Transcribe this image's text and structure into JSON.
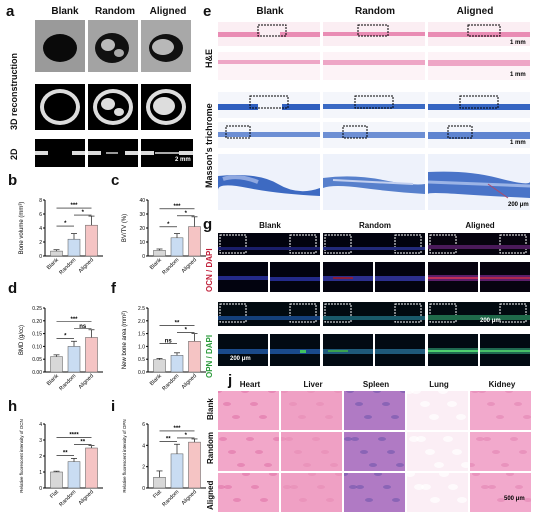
{
  "panel_letters": {
    "a": "a",
    "b": "b",
    "c": "c",
    "d": "d",
    "e": "e",
    "f": "f",
    "g": "g",
    "h": "h",
    "i": "i",
    "j": "j"
  },
  "a": {
    "columns": [
      "Blank",
      "Random",
      "Aligned"
    ],
    "rows": [
      "3D reconstruction",
      "2D"
    ],
    "scale_bar": "2 mm"
  },
  "e": {
    "columns": [
      "Blank",
      "Random",
      "Aligned"
    ],
    "rows": [
      "H&E",
      "Masson's trichrome"
    ],
    "scale_1mm": "1 mm",
    "scale_200": "200 μm"
  },
  "g": {
    "columns": [
      "Blank",
      "Random",
      "Aligned"
    ],
    "row_ocn": "OCN / DAPI",
    "row_opn": "OPN / DAPI",
    "scale_200": "200 μm"
  },
  "j": {
    "columns": [
      "Heart",
      "Liver",
      "Spleen",
      "Lung",
      "Kidney"
    ],
    "rows": [
      "Blank",
      "Random",
      "Aligned"
    ],
    "scale": "500 μm"
  },
  "colors": {
    "bar1": "#d8d8d8",
    "bar2": "#c9dcf2",
    "bar3": "#f5c4c4",
    "err": "#333333"
  },
  "chart_data": [
    {
      "id": "b",
      "type": "bar",
      "categories": [
        "Blank",
        "Random",
        "Aligned"
      ],
      "values": [
        0.7,
        2.4,
        4.4
      ],
      "errors": [
        0.2,
        0.8,
        1.3
      ],
      "ylabel": "Bone volume (mm³)",
      "ylim": [
        0,
        8
      ],
      "yticks": [
        "0",
        "2",
        "4",
        "6",
        "8"
      ],
      "sig": [
        "*",
        "*",
        "***"
      ]
    },
    {
      "id": "c",
      "type": "bar",
      "categories": [
        "Blank",
        "Random",
        "Aligned"
      ],
      "values": [
        4,
        13,
        21
      ],
      "errors": [
        1,
        3,
        7
      ],
      "ylabel": "BV/TV (%)",
      "ylim": [
        0,
        40
      ],
      "yticks": [
        "0",
        "10",
        "20",
        "30",
        "40"
      ],
      "sig": [
        "*",
        "*",
        "***"
      ]
    },
    {
      "id": "d",
      "type": "bar",
      "categories": [
        "Blank",
        "Random",
        "Aligned"
      ],
      "values": [
        0.06,
        0.1,
        0.135
      ],
      "errors": [
        0.007,
        0.02,
        0.03
      ],
      "ylabel": "BMD (g/cc)",
      "ylim": [
        0,
        0.25
      ],
      "yticks": [
        "0.00",
        "0.05",
        "0.10",
        "0.15",
        "0.20",
        "0.25"
      ],
      "sig": [
        "*",
        "ns",
        "***"
      ]
    },
    {
      "id": "f",
      "type": "bar",
      "categories": [
        "Blank",
        "Random",
        "Aligned"
      ],
      "values": [
        0.48,
        0.65,
        1.2
      ],
      "errors": [
        0.05,
        0.1,
        0.3
      ],
      "ylabel": "New bone area (mm²)",
      "ylim": [
        0,
        2.5
      ],
      "yticks": [
        "0.0",
        "0.5",
        "1.0",
        "1.5",
        "2.0",
        "2.5"
      ],
      "sig": [
        "ns",
        "*",
        "**"
      ]
    },
    {
      "id": "h",
      "type": "bar",
      "categories": [
        "Flat",
        "Random",
        "Aligned"
      ],
      "values": [
        1.0,
        1.65,
        2.5
      ],
      "errors": [
        0.05,
        0.2,
        0.15
      ],
      "ylabel": "Relative fluorescent intensity of OCN",
      "ylim": [
        0,
        4
      ],
      "yticks": [
        "0",
        "1",
        "2",
        "3",
        "4"
      ],
      "sig": [
        "**",
        "**",
        "****"
      ]
    },
    {
      "id": "i",
      "type": "bar",
      "categories": [
        "Flat",
        "Random",
        "Aligned"
      ],
      "values": [
        1.0,
        3.2,
        4.3
      ],
      "errors": [
        0.6,
        0.9,
        0.3
      ],
      "ylabel": "Relative fluorescent intensity of OPN",
      "ylim": [
        0,
        6
      ],
      "yticks": [
        "0",
        "2",
        "4",
        "6"
      ],
      "sig": [
        "**",
        "*",
        "***"
      ]
    }
  ]
}
